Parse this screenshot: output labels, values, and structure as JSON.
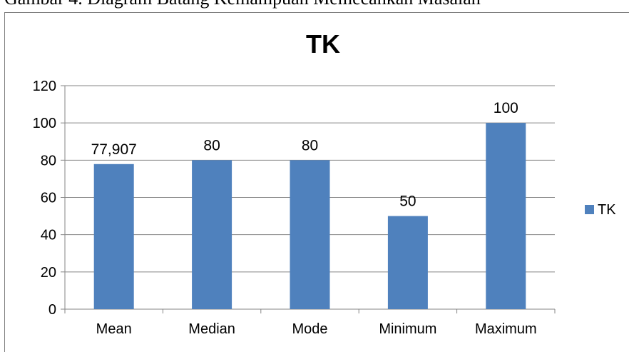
{
  "caption": "Gambar 4. Diagram Batang Kemampuan Memecahkan Masalah",
  "chart_data": {
    "type": "bar",
    "title": "TK",
    "categories": [
      "Mean",
      "Median",
      "Mode",
      "Minimum",
      "Maximum"
    ],
    "series": [
      {
        "name": "TK",
        "values": [
          77.907,
          80,
          80,
          50,
          100
        ],
        "color": "#4f81bd"
      }
    ],
    "data_labels": [
      "77,907",
      "80",
      "80",
      "50",
      "100"
    ],
    "xlabel": "",
    "ylabel": "",
    "ylim": [
      0,
      120
    ],
    "yticks": [
      0,
      20,
      40,
      60,
      80,
      100,
      120
    ],
    "grid": true,
    "legend": "right"
  }
}
